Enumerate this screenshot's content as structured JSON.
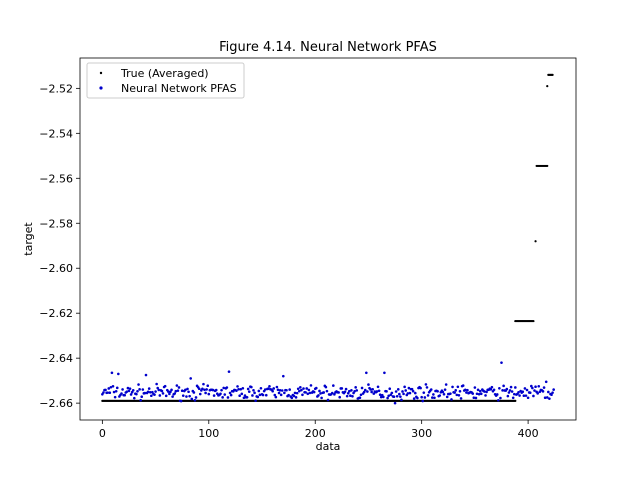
{
  "chart_data": {
    "type": "scatter",
    "title": "Figure 4.14. Neural Network PFAS",
    "xlabel": "data",
    "ylabel": "target",
    "xlim": [
      -21,
      445
    ],
    "ylim": [
      -2.6675,
      -2.5065
    ],
    "xticks": [
      0,
      100,
      200,
      300,
      400
    ],
    "yticks": [
      -2.66,
      -2.64,
      -2.62,
      -2.6,
      -2.58,
      -2.56,
      -2.54,
      -2.52
    ],
    "ytick_labels": [
      "−2.66",
      "−2.64",
      "−2.62",
      "−2.60",
      "−2.58",
      "−2.56",
      "−2.54",
      "−2.52"
    ],
    "legend_position": "top-left",
    "grid": false,
    "colors": {
      "true": "#000000",
      "nn": "#0000cc"
    },
    "series": [
      {
        "name": "True (Averaged)",
        "segments": [
          {
            "x_start": 0,
            "x_end": 388,
            "y": -2.659
          },
          {
            "x_start": 388,
            "x_end": 405,
            "y": -2.6235
          },
          {
            "x_start": 407,
            "x_end": 407,
            "y": -2.588
          },
          {
            "x_start": 408,
            "x_end": 418,
            "y": -2.5545
          },
          {
            "x_start": 418,
            "x_end": 418,
            "y": -2.519
          },
          {
            "x_start": 419,
            "x_end": 423,
            "y": -2.514
          }
        ]
      },
      {
        "name": "Neural Network PFAS",
        "x_start": 0,
        "x_end": 424,
        "y_base": -2.6552,
        "y_spread": 0.0045,
        "seed": 7,
        "points": [
          {
            "x": 9,
            "y": -2.6465
          },
          {
            "x": 15,
            "y": -2.647
          },
          {
            "x": 41,
            "y": -2.6475
          },
          {
            "x": 83,
            "y": -2.649
          },
          {
            "x": 119,
            "y": -2.646
          },
          {
            "x": 170,
            "y": -2.648
          },
          {
            "x": 248,
            "y": -2.6465
          },
          {
            "x": 265,
            "y": -2.6465
          },
          {
            "x": 275,
            "y": -2.66
          },
          {
            "x": 375,
            "y": -2.642
          },
          {
            "x": 417,
            "y": -2.6505
          },
          {
            "x": 420,
            "y": -2.658
          }
        ]
      }
    ]
  }
}
